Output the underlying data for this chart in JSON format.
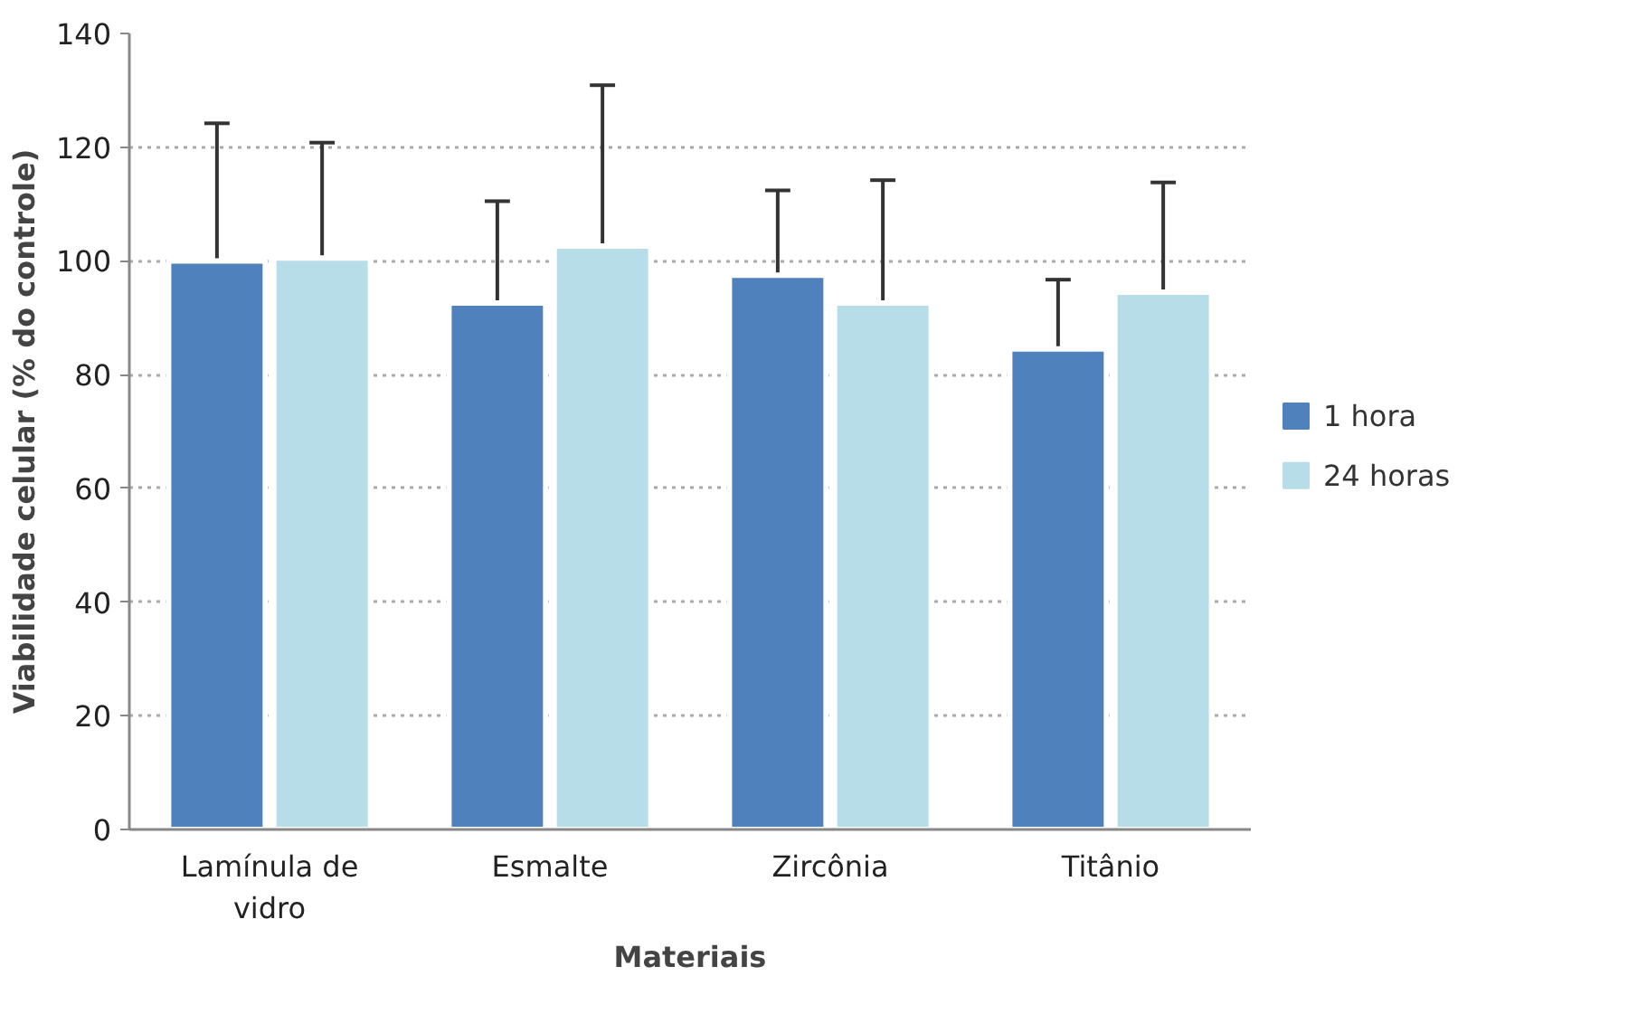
{
  "chart_data": {
    "type": "bar",
    "xlabel": "Materiais",
    "ylabel": "Viabilidade celular (% do controle)",
    "categories": [
      "Lamínula de\nvidro",
      "Esmalte",
      "Zircônia",
      "Titânio"
    ],
    "series": [
      {
        "name": "1 hora",
        "color": "#4f81bd",
        "values": [
          100,
          92.6,
          97.5,
          84.5
        ],
        "errors": [
          [
            100,
            124.2
          ],
          [
            92.6,
            110.5
          ],
          [
            97.5,
            112.4
          ],
          [
            84.5,
            96.7
          ]
        ]
      },
      {
        "name": "24 horas",
        "color": "#b7dde8",
        "values": [
          100.5,
          102.6,
          92.6,
          94.5
        ],
        "errors": [
          [
            100.5,
            120.8
          ],
          [
            102.6,
            130.9
          ],
          [
            92.6,
            114.2
          ],
          [
            94.5,
            113.8
          ]
        ]
      }
    ],
    "ylim": [
      0,
      140
    ],
    "yticks": [
      0,
      20,
      40,
      60,
      80,
      100,
      120,
      140
    ],
    "grid": "y",
    "legend": "right"
  }
}
